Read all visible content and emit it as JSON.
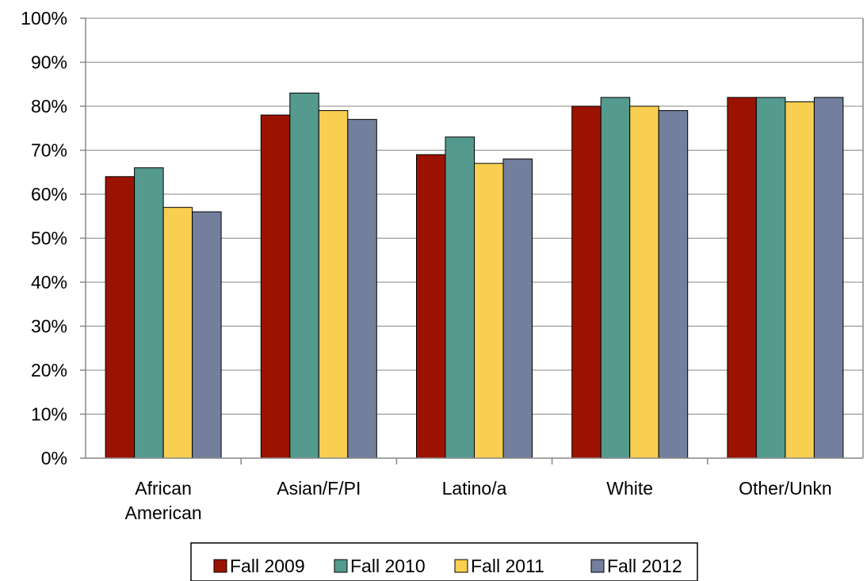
{
  "chart_data": {
    "type": "bar",
    "title": "",
    "xlabel": "",
    "ylabel": "",
    "ylim": [
      0,
      100
    ],
    "y_ticks": [
      "0%",
      "10%",
      "20%",
      "30%",
      "40%",
      "50%",
      "60%",
      "70%",
      "80%",
      "90%",
      "100%"
    ],
    "y_unit": "%",
    "grid": true,
    "legend_position": "bottom",
    "categories": [
      [
        "African",
        "American"
      ],
      [
        "Asian/F/PI"
      ],
      [
        "Latino/a"
      ],
      [
        "White"
      ],
      [
        "Other/Unkn"
      ]
    ],
    "series": [
      {
        "name": "Fall 2009",
        "color": "#9B1300",
        "values": [
          64,
          78,
          69,
          80,
          82
        ]
      },
      {
        "name": "Fall 2010",
        "color": "#559A8E",
        "values": [
          66,
          83,
          73,
          82,
          82
        ]
      },
      {
        "name": "Fall 2011",
        "color": "#F8CF51",
        "values": [
          57,
          79,
          67,
          80,
          81
        ]
      },
      {
        "name": "Fall 2012",
        "color": "#737F9D",
        "values": [
          56,
          77,
          68,
          79,
          82
        ]
      }
    ]
  }
}
